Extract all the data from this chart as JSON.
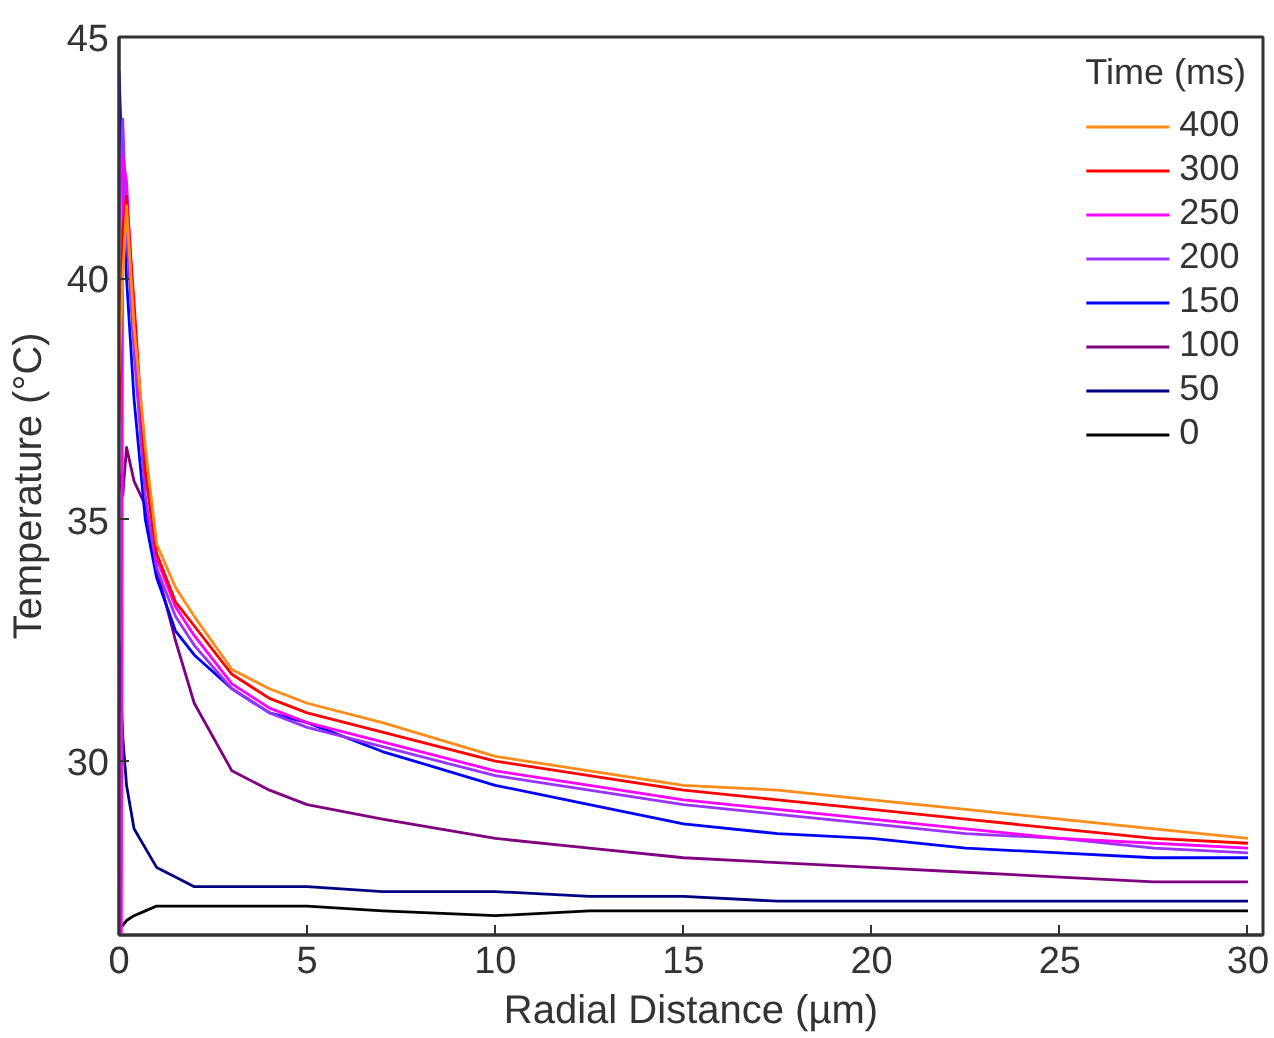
{
  "chart_data": {
    "type": "line",
    "xlabel": "Radial Distance (µm)",
    "ylabel": "Temperature (°C)",
    "legend_title": "Time (ms)",
    "legend": "top right",
    "grid": false,
    "x": [
      0,
      0.1,
      0.2,
      0.4,
      0.7,
      1,
      1.5,
      2,
      3,
      4,
      5,
      7,
      10,
      12.5,
      15,
      17.5,
      20,
      22.5,
      25,
      27.5,
      30
    ],
    "xlim": [
      0,
      30.4
    ],
    "ylim": [
      26.4,
      45
    ],
    "xticks": [
      0,
      5,
      10,
      15,
      20,
      25,
      30
    ],
    "yticks": [
      30,
      35,
      40,
      45
    ],
    "series": [
      {
        "name": "400",
        "color": "#ff8c1a",
        "values": [
          38,
          40,
          41.5,
          39,
          36.5,
          34.5,
          33.6,
          33.0,
          31.9,
          31.5,
          31.2,
          30.8,
          30.1,
          29.8,
          29.5,
          29.4,
          29.2,
          29.0,
          28.8,
          28.6,
          28.4
        ]
      },
      {
        "name": "300",
        "color": "#ff0000",
        "values": [
          37,
          41,
          41.7,
          39.5,
          36,
          34.3,
          33.3,
          32.8,
          31.8,
          31.3,
          31.0,
          30.6,
          30.0,
          29.7,
          29.4,
          29.2,
          29.0,
          28.8,
          28.6,
          28.4,
          28.3
        ]
      },
      {
        "name": "250",
        "color": "#ff00ff",
        "values": [
          null,
          42.5,
          42,
          39,
          36,
          34.2,
          33.2,
          32.6,
          31.6,
          31.1,
          30.8,
          30.4,
          29.8,
          29.5,
          29.2,
          29.0,
          28.8,
          28.6,
          28.4,
          28.3,
          28.2
        ]
      },
      {
        "name": "200",
        "color": "#9933ff",
        "values": [
          41,
          43.3,
          41,
          38.5,
          35.5,
          34.0,
          33.0,
          32.4,
          31.5,
          31.0,
          30.7,
          30.3,
          29.7,
          29.4,
          29.1,
          28.9,
          28.7,
          28.5,
          28.4,
          28.2,
          28.1
        ]
      },
      {
        "name": "150",
        "color": "#0000ff",
        "values": [
          44.3,
          42,
          40,
          37.5,
          35,
          33.8,
          32.7,
          32.2,
          31.5,
          31.0,
          30.8,
          30.2,
          29.5,
          29.1,
          28.7,
          28.5,
          28.4,
          28.2,
          28.1,
          28.0,
          28.0
        ]
      },
      {
        "name": "100",
        "color": "#800080",
        "values": [
          36,
          35.5,
          36.5,
          35.8,
          35.3,
          34,
          32.5,
          31.2,
          29.8,
          29.4,
          29.1,
          28.8,
          28.4,
          28.2,
          28.0,
          27.9,
          27.8,
          27.7,
          27.6,
          27.5,
          27.5
        ]
      },
      {
        "name": "50",
        "color": "#000080",
        "values": [
          32.5,
          30.5,
          29.5,
          28.6,
          28.2,
          27.8,
          27.6,
          27.4,
          27.4,
          27.4,
          27.4,
          27.3,
          27.3,
          27.2,
          27.2,
          27.1,
          27.1,
          27.1,
          27.1,
          27.1,
          27.1
        ]
      },
      {
        "name": "0",
        "color": "#000000",
        "values": [
          26.6,
          26.6,
          26.7,
          26.8,
          26.9,
          27.0,
          27.0,
          27.0,
          27.0,
          27.0,
          27.0,
          26.9,
          26.8,
          26.9,
          26.9,
          26.9,
          26.9,
          26.9,
          26.9,
          26.9,
          26.9
        ]
      }
    ]
  }
}
